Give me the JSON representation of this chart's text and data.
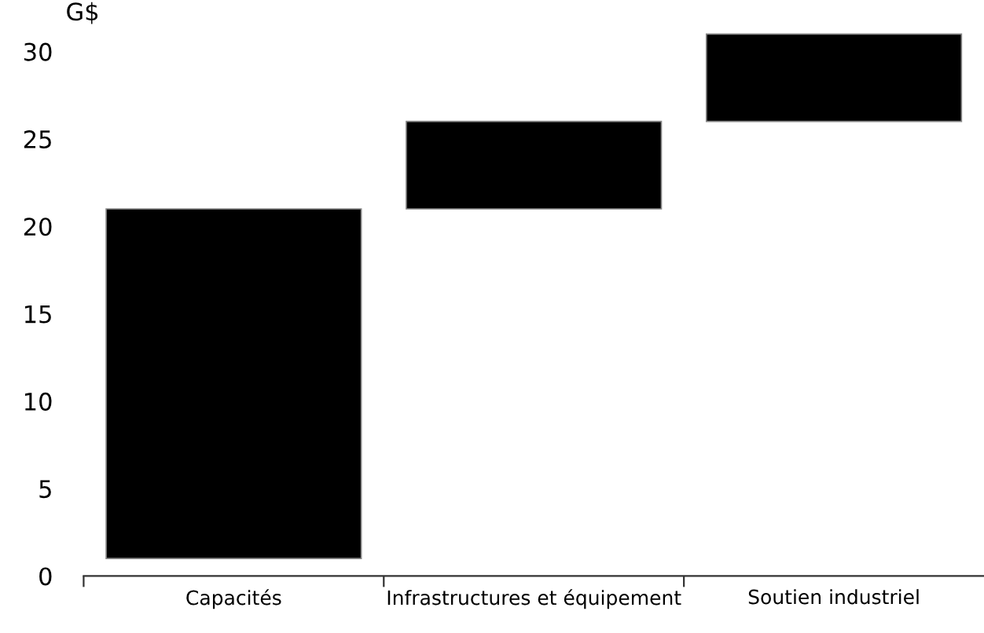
{
  "chart_data": {
    "type": "bar",
    "ylabel": "G$",
    "categories": [
      "Capacités",
      "Infrastructures et équipement",
      "Soutien industriel"
    ],
    "values": [
      20,
      5,
      5
    ],
    "base": [
      1,
      21,
      26
    ],
    "color": "#000000",
    "ylim": [
      0,
      31.5
    ],
    "yticks": [
      0,
      5,
      10,
      15,
      20,
      25,
      30
    ],
    "grid": false,
    "legend": false
  }
}
